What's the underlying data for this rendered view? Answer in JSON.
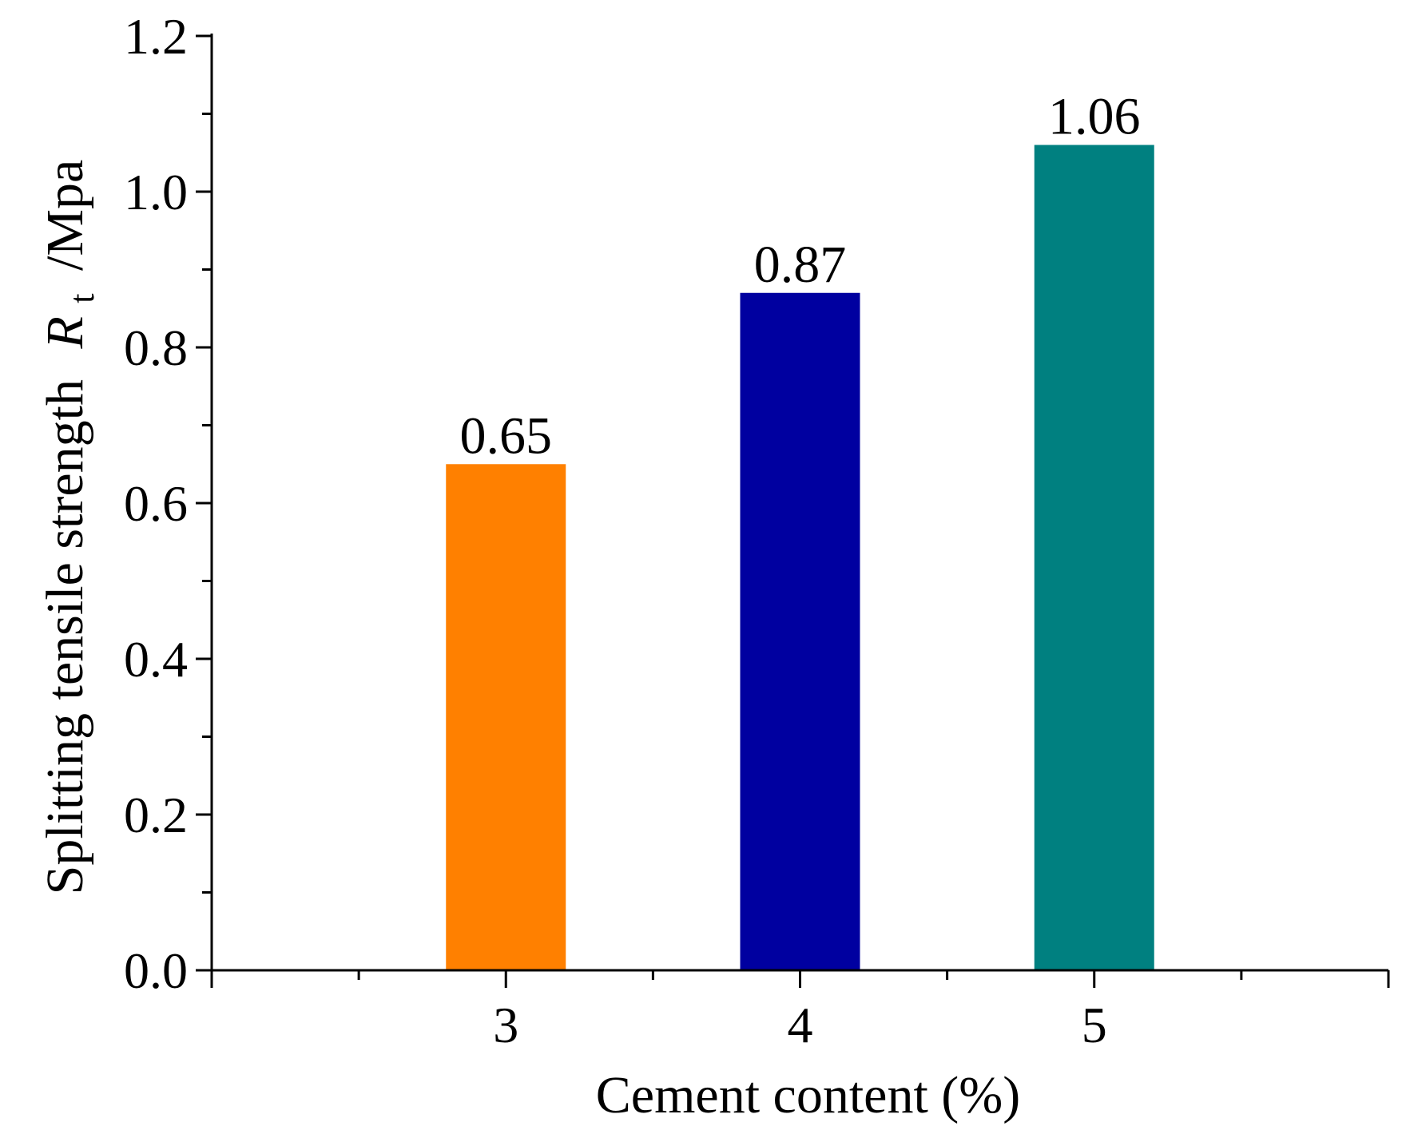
{
  "chart_data": {
    "type": "bar",
    "categories": [
      "3",
      "4",
      "5"
    ],
    "x": [
      3,
      4,
      5
    ],
    "values": [
      0.65,
      0.87,
      1.06
    ],
    "data_labels": [
      "0.65",
      "0.87",
      "1.06"
    ],
    "colors": [
      "#FF8000",
      "#0000A0",
      "#008080"
    ],
    "title": "",
    "xlabel": "Cement content (%)",
    "ylabel": {
      "prefix": "Splitting tensile strength",
      "symbol": "R",
      "subscript": "t",
      "unit": "/Mpa"
    },
    "xlim": [
      2,
      6
    ],
    "ylim": [
      0,
      1.2
    ],
    "y_major_ticks": [
      "0.0",
      "0.2",
      "0.4",
      "0.6",
      "0.8",
      "1.0",
      "1.2"
    ],
    "y_minor_step": 0.1,
    "x_minor_step": 0.5,
    "grid": false,
    "legend": "none"
  }
}
